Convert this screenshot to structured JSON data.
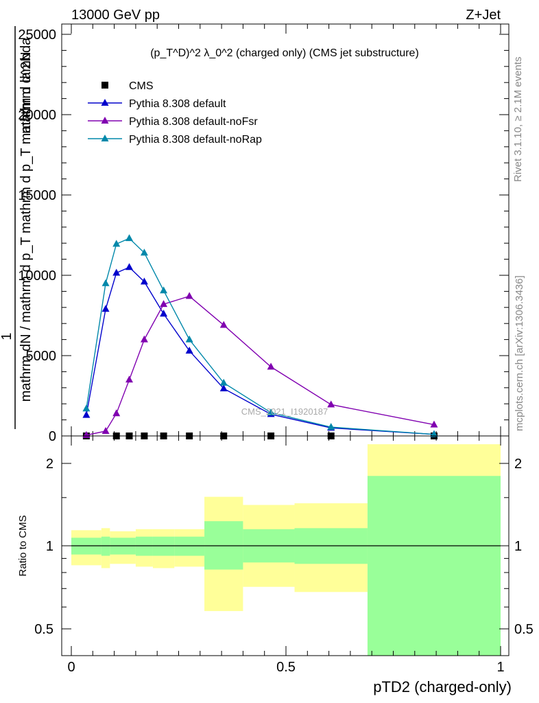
{
  "header": {
    "left": "13000 GeV pp",
    "right": "Z+Jet"
  },
  "side_labels": {
    "rivet": "Rivet 3.1.10, ≥ 2.1M events",
    "mcplots": "mcplots.cern.ch [arXiv:1306.3436]"
  },
  "watermark": "CMS_2021_I1920187",
  "ratio_ylabel": "Ratio to CMS",
  "colors": {
    "cms": "#000000",
    "default": "#0000cc",
    "noFsr": "#8000b0",
    "noRap": "#0088aa",
    "band_inner": "#99ff99",
    "band_outer": "#ffff99"
  },
  "chart_data": [
    {
      "type": "line",
      "title": "(p_T^D)^2 λ_0^2 (charged only) (CMS jet substructure)",
      "ylabel_lines": [
        "1",
        "mathrm dN / mathrm d p_T mathrm d p_T mathrm d lambda",
        "mathrm d^2N"
      ],
      "xlabel": "pTD2 (charged-only)",
      "xlim": [
        -0.0,
        1.0
      ],
      "ylim": [
        0,
        25000
      ],
      "yticks": [
        0,
        5000,
        10000,
        15000,
        20000,
        25000
      ],
      "ytick_labels": [
        "0",
        "5000",
        "10000",
        "15000",
        "20000",
        "25000"
      ],
      "legend_position": "top-left",
      "series": [
        {
          "name": "CMS",
          "marker": "square",
          "x": [
            0.035,
            0.105,
            0.135,
            0.17,
            0.215,
            0.275,
            0.355,
            0.465,
            0.605,
            0.845
          ],
          "y": [
            0,
            0,
            0,
            0,
            0,
            0,
            0,
            0,
            0,
            0
          ]
        },
        {
          "name": "Pythia 8.308 default",
          "marker": "triangle",
          "x": [
            0.035,
            0.08,
            0.105,
            0.135,
            0.17,
            0.215,
            0.275,
            0.355,
            0.465,
            0.605,
            0.845
          ],
          "y": [
            1300,
            7900,
            10150,
            10500,
            9600,
            7600,
            5300,
            2950,
            1350,
            500,
            100
          ]
        },
        {
          "name": "Pythia 8.308 default-noFsr",
          "marker": "triangle",
          "x": [
            0.035,
            0.08,
            0.105,
            0.135,
            0.17,
            0.215,
            0.275,
            0.355,
            0.465,
            0.605,
            0.845
          ],
          "y": [
            50,
            300,
            1400,
            3500,
            6000,
            8200,
            8700,
            6900,
            4300,
            1950,
            700
          ]
        },
        {
          "name": "Pythia 8.308 default-noRap",
          "marker": "triangle",
          "x": [
            0.035,
            0.08,
            0.105,
            0.135,
            0.17,
            0.215,
            0.275,
            0.355,
            0.465,
            0.605,
            0.845
          ],
          "y": [
            1700,
            9500,
            11950,
            12300,
            11400,
            9050,
            6000,
            3300,
            1450,
            550,
            100
          ]
        }
      ]
    },
    {
      "type": "area",
      "ylabel": "Ratio to CMS",
      "xlabel": "pTD2 (charged-only)",
      "xlim": [
        0.0,
        1.0
      ],
      "ylim": [
        0.35,
        2.35
      ],
      "yticks": [
        0.5,
        1,
        2
      ],
      "ytick_labels": [
        "0.5",
        "1",
        "2"
      ],
      "xticks": [
        0,
        0.5,
        1
      ],
      "xtick_labels": [
        "0",
        "0.5",
        "1"
      ],
      "reference_line": 1,
      "bins": [
        {
          "x0": 0.0,
          "x1": 0.07,
          "inner": [
            0.93,
            1.07
          ],
          "outer": [
            0.85,
            1.14
          ]
        },
        {
          "x0": 0.07,
          "x1": 0.09,
          "inner": [
            0.92,
            1.08
          ],
          "outer": [
            0.83,
            1.16
          ]
        },
        {
          "x0": 0.09,
          "x1": 0.15,
          "inner": [
            0.93,
            1.07
          ],
          "outer": [
            0.86,
            1.13
          ]
        },
        {
          "x0": 0.15,
          "x1": 0.19,
          "inner": [
            0.92,
            1.08
          ],
          "outer": [
            0.84,
            1.15
          ]
        },
        {
          "x0": 0.19,
          "x1": 0.24,
          "inner": [
            0.92,
            1.08
          ],
          "outer": [
            0.83,
            1.15
          ]
        },
        {
          "x0": 0.24,
          "x1": 0.31,
          "inner": [
            0.92,
            1.08
          ],
          "outer": [
            0.84,
            1.15
          ]
        },
        {
          "x0": 0.31,
          "x1": 0.4,
          "inner": [
            0.82,
            1.23
          ],
          "outer": [
            0.58,
            1.51
          ]
        },
        {
          "x0": 0.4,
          "x1": 0.52,
          "inner": [
            0.87,
            1.15
          ],
          "outer": [
            0.71,
            1.41
          ]
        },
        {
          "x0": 0.52,
          "x1": 0.69,
          "inner": [
            0.86,
            1.16
          ],
          "outer": [
            0.68,
            1.43
          ]
        },
        {
          "x0": 0.69,
          "x1": 1.0,
          "inner": [
            0.35,
            1.8
          ],
          "outer": [
            0.35,
            2.35
          ]
        }
      ]
    }
  ]
}
